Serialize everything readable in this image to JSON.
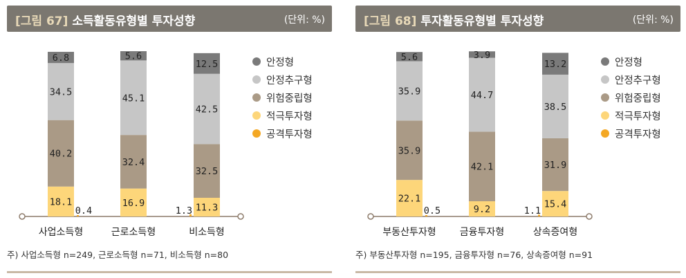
{
  "colors": {
    "안정형": "#7a7a7a",
    "안정추구형": "#c6c6c6",
    "위험중립형": "#aa9a86",
    "적극투자형": "#fdd67a",
    "공격투자형": "#f4a824",
    "title_bar": "#7b7770",
    "baseline": "#8c7a6a"
  },
  "chart_data": [
    {
      "type": "bar",
      "figure_label": "[그림 67]",
      "title": "소득활동유형별 투자성향",
      "unit": "(단위: %)",
      "categories": [
        "사업소득형",
        "근로소득형",
        "비소득형"
      ],
      "stack_order": [
        "적극투자형",
        "위험중립형",
        "안정추구형",
        "안정형"
      ],
      "series": [
        {
          "name": "안정형",
          "values": [
            6.8,
            5.6,
            12.5
          ]
        },
        {
          "name": "안정추구형",
          "values": [
            34.5,
            45.1,
            42.5
          ]
        },
        {
          "name": "위험중립형",
          "values": [
            40.2,
            32.4,
            32.5
          ]
        },
        {
          "name": "적극투자형",
          "values": [
            18.1,
            16.9,
            11.3
          ]
        },
        {
          "name": "공격투자형",
          "values": [
            0.4,
            0.0,
            1.3
          ]
        }
      ],
      "aggressive_labels": [
        "0.4",
        "",
        "1.3"
      ],
      "legend": [
        "안정형",
        "안정추구형",
        "위험중립형",
        "적극투자형",
        "공격투자형"
      ],
      "legend_placement": "right",
      "ylim": [
        0,
        100
      ],
      "note": "주) 사업소득형 n=249, 근로소득형 n=71, 비소득형 n=80"
    },
    {
      "type": "bar",
      "figure_label": "[그림 68]",
      "title": "투자활동유형별 투자성향",
      "unit": "(단위: %)",
      "categories": [
        "부동산투자형",
        "금융투자형",
        "상속증여형"
      ],
      "stack_order": [
        "적극투자형",
        "위험중립형",
        "안정추구형",
        "안정형"
      ],
      "series": [
        {
          "name": "안정형",
          "values": [
            5.6,
            3.9,
            13.2
          ]
        },
        {
          "name": "안정추구형",
          "values": [
            35.9,
            44.7,
            38.5
          ]
        },
        {
          "name": "위험중립형",
          "values": [
            35.9,
            42.1,
            31.9
          ]
        },
        {
          "name": "적극투자형",
          "values": [
            22.1,
            9.2,
            15.4
          ]
        },
        {
          "name": "공격투자형",
          "values": [
            0.5,
            0.0,
            1.1
          ]
        }
      ],
      "aggressive_labels": [
        "0.5",
        "",
        "1.1"
      ],
      "legend": [
        "안정형",
        "안정추구형",
        "위험중립형",
        "적극투자형",
        "공격투자형"
      ],
      "legend_placement": "right",
      "ylim": [
        0,
        100
      ],
      "note": "주) 부동산투자형 n=195, 금융투자형 n=76, 상속증여형 n=91"
    }
  ]
}
